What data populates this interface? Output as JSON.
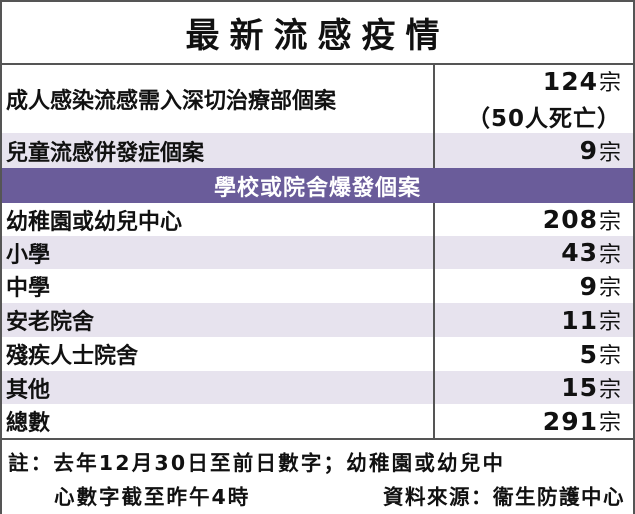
{
  "title": "最新流感疫情",
  "adult_icu": {
    "label": "成人感染流感需入深切治療部個案",
    "number": "124",
    "unit": "宗",
    "deaths_note": "（50人死亡）"
  },
  "child_complication": {
    "label": "兒童流感併發症個案",
    "number": "9",
    "unit": "宗"
  },
  "section_header": "學校或院舍爆發個案",
  "outbreaks": [
    {
      "label": "幼稚園或幼兒中心",
      "number": "208",
      "unit": "宗"
    },
    {
      "label": "小學",
      "number": "43",
      "unit": "宗"
    },
    {
      "label": "中學",
      "number": "9",
      "unit": "宗"
    },
    {
      "label": "安老院舍",
      "number": "11",
      "unit": "宗"
    },
    {
      "label": "殘疾人士院舍",
      "number": "5",
      "unit": "宗"
    },
    {
      "label": "其他",
      "number": "15",
      "unit": "宗"
    },
    {
      "label": "總數",
      "number": "291",
      "unit": "宗"
    }
  ],
  "notes": {
    "line1": "註：去年12月30日至前日數字；幼稚園或幼兒中",
    "line2": "心數字截至昨午4時",
    "source": "資料來源：衞生防護中心"
  },
  "colors": {
    "section_header_bg": "#6a5c9a",
    "alt_row_bg": "#e7e3ee"
  }
}
